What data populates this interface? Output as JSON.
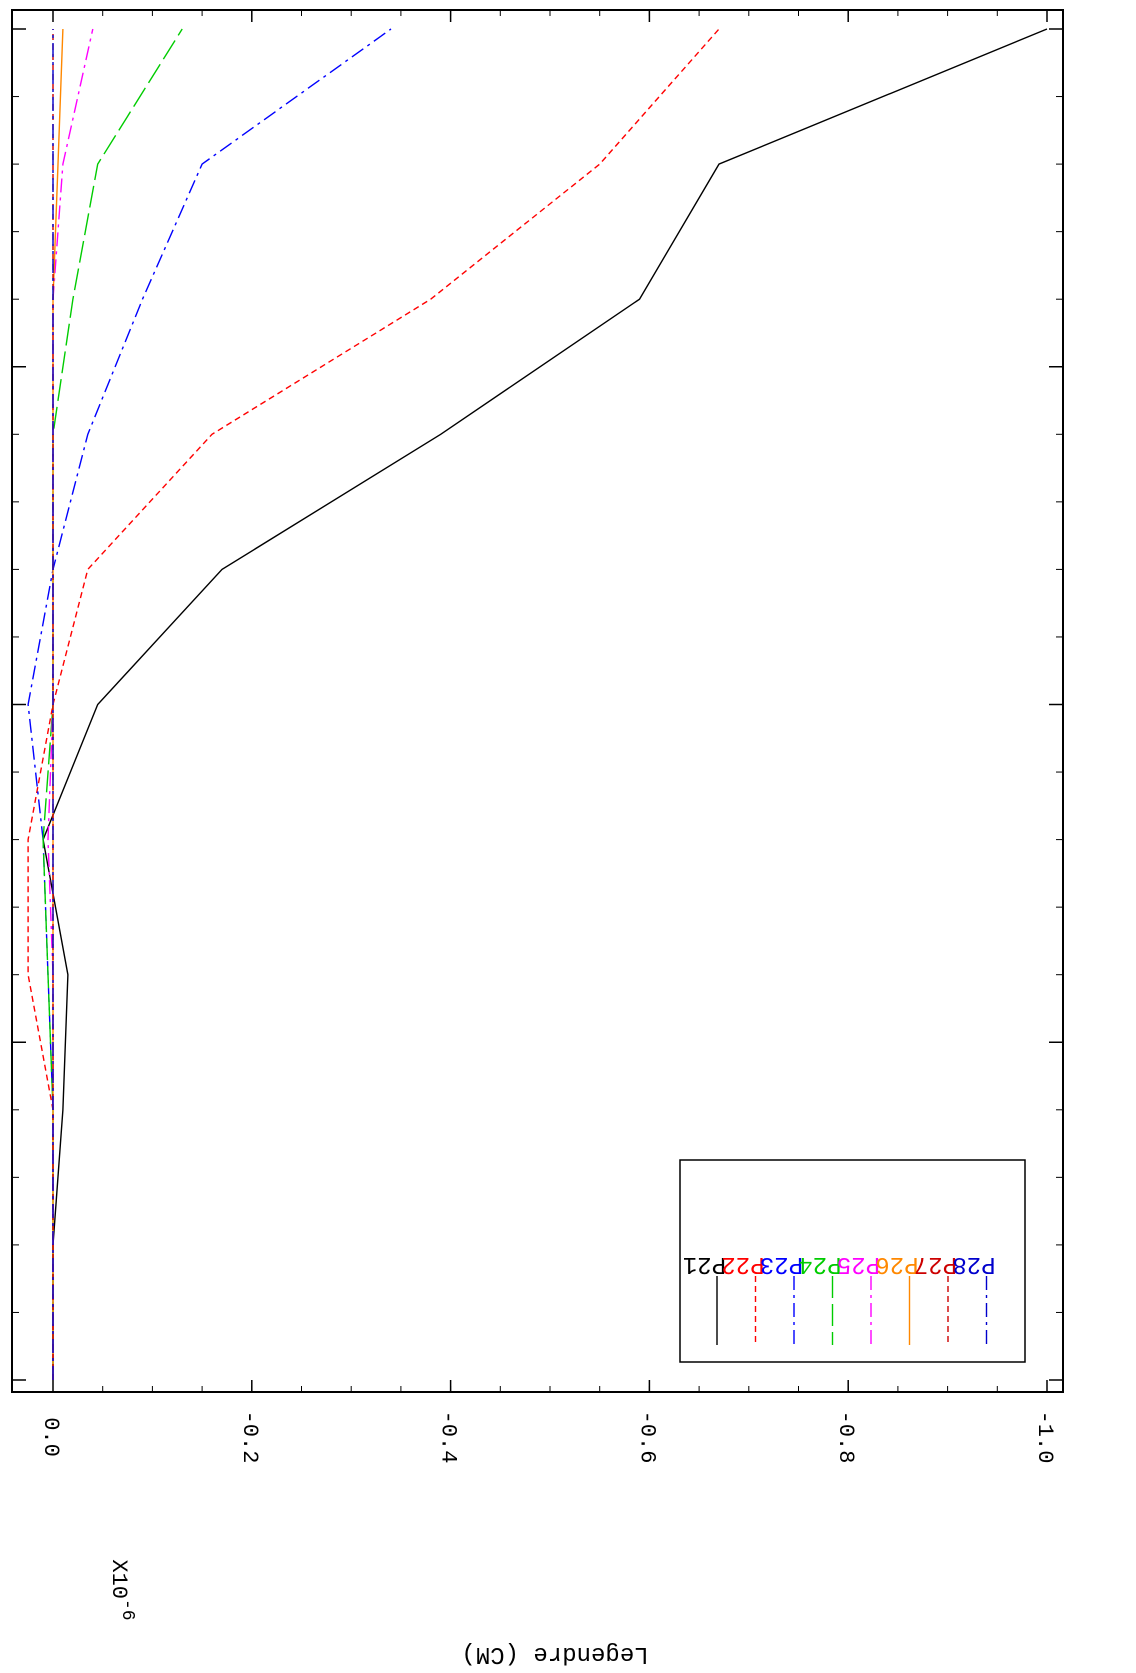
{
  "chart_data": {
    "type": "line",
    "orientation": "rotated-180",
    "title": "",
    "xlabel": "",
    "ylabel": "Legendre (CM)",
    "y_exponent_label": "X10",
    "y_exponent_power": "-6",
    "ylim": [
      0.02,
      -1.02
    ],
    "y_ticks": [
      0.0,
      -0.2,
      -0.4,
      -0.6,
      -0.8,
      -1.0
    ],
    "y_tick_labels": [
      "0.0",
      "-0.2",
      "-0.4",
      "-0.6",
      "-0.8",
      "-1.0"
    ],
    "xlim": [
      -0.2,
      10.2
    ],
    "x_major_ticks": [
      0,
      2.5,
      5,
      7.5,
      10
    ],
    "x_minor_step": 0.5,
    "x": [
      0,
      1,
      2,
      3,
      4,
      5,
      6,
      7,
      8,
      9,
      10
    ],
    "legend_position": "bottom-left",
    "series": [
      {
        "name": "P21",
        "color": "#000000",
        "dash": "solid",
        "values": [
          0,
          0,
          -0.01,
          -0.015,
          0.01,
          -0.045,
          -0.17,
          -0.39,
          -0.59,
          -0.67,
          -1.0
        ]
      },
      {
        "name": "P22",
        "color": "#ff0000",
        "dash": "short",
        "values": [
          0,
          0,
          0,
          0.025,
          0.025,
          0.0,
          -0.035,
          -0.16,
          -0.38,
          -0.55,
          -0.67
        ]
      },
      {
        "name": "P23",
        "color": "#0000ff",
        "dash": "dashdot",
        "values": [
          0,
          0,
          0,
          0.005,
          0.01,
          0.025,
          0.0,
          -0.035,
          -0.09,
          -0.15,
          -0.34
        ]
      },
      {
        "name": "P24",
        "color": "#00cc00",
        "dash": "longdash",
        "values": [
          0,
          0,
          0,
          0.005,
          0.01,
          0.0,
          0.0,
          0.0,
          -0.02,
          -0.045,
          -0.13
        ]
      },
      {
        "name": "P25",
        "color": "#ff00ff",
        "dash": "dashdot",
        "values": [
          0,
          0,
          0,
          0.0,
          0.005,
          0.0,
          0.0,
          0.0,
          0.0,
          -0.01,
          -0.04
        ]
      },
      {
        "name": "P26",
        "color": "#ff8800",
        "dash": "solid",
        "values": [
          0,
          0,
          0,
          0.0,
          0.0,
          0.0,
          0.0,
          0.0,
          0.0,
          -0.005,
          -0.01
        ]
      },
      {
        "name": "P27",
        "color": "#cc0000",
        "dash": "short",
        "values": [
          0,
          0,
          0,
          0.0,
          0.0,
          0.0,
          0.0,
          0.0,
          0.0,
          0.0,
          0.0
        ]
      },
      {
        "name": "P28",
        "color": "#0000cc",
        "dash": "dashdot",
        "values": [
          0,
          0,
          0,
          0.0,
          0.0,
          0.0,
          0.0,
          0.0,
          0.0,
          0.0,
          0.0
        ]
      }
    ]
  }
}
